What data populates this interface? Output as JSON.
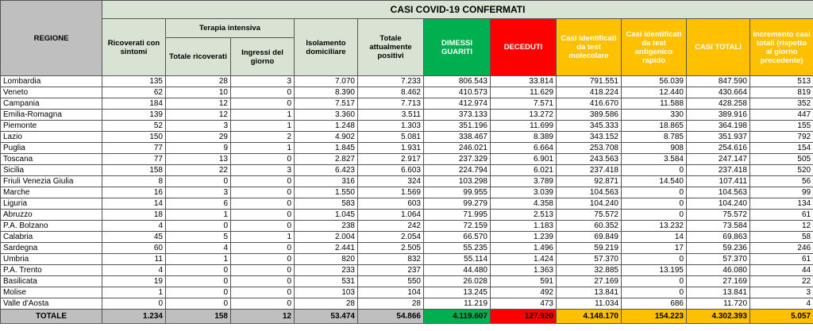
{
  "header": {
    "title": "CASI COVID-19 CONFERMATI",
    "region": "REGIONE",
    "group": "Terapia intensiva",
    "columns": [
      "Ricoverati con sintomi",
      "Totale ricoverati",
      "Ingressi del giorno",
      "Isolamento domiciliare",
      "Totale attualmente positivi",
      "DIMESSI GUARITI",
      "DECEDUTI",
      "Casi identificati da test molecolare",
      "Casi identificati da test antigenico rapido",
      "CASI TOTALI",
      "Incremento casi totali (rispetto al giorno precedente)"
    ]
  },
  "rows": [
    [
      "Lombardia",
      "135",
      "28",
      "3",
      "7.070",
      "7.233",
      "806.543",
      "33.814",
      "791.551",
      "56.039",
      "847.590",
      "513"
    ],
    [
      "Veneto",
      "62",
      "10",
      "0",
      "8.390",
      "8.462",
      "410.573",
      "11.629",
      "418.224",
      "12.440",
      "430.664",
      "819"
    ],
    [
      "Campania",
      "184",
      "12",
      "0",
      "7.517",
      "7.713",
      "412.974",
      "7.571",
      "416.670",
      "11.588",
      "428.258",
      "352"
    ],
    [
      "Emilia-Romagna",
      "139",
      "12",
      "1",
      "3.360",
      "3.511",
      "373.133",
      "13.272",
      "389.586",
      "330",
      "389.916",
      "447"
    ],
    [
      "Piemonte",
      "52",
      "3",
      "1",
      "1.248",
      "1.303",
      "351.196",
      "11.699",
      "345.333",
      "18.865",
      "364.198",
      "155"
    ],
    [
      "Lazio",
      "150",
      "29",
      "2",
      "4.902",
      "5.081",
      "338.467",
      "8.389",
      "343.152",
      "8.785",
      "351.937",
      "792"
    ],
    [
      "Puglia",
      "77",
      "9",
      "1",
      "1.845",
      "1.931",
      "246.021",
      "6.664",
      "253.708",
      "908",
      "254.616",
      "154"
    ],
    [
      "Toscana",
      "77",
      "13",
      "0",
      "2.827",
      "2.917",
      "237.329",
      "6.901",
      "243.563",
      "3.584",
      "247.147",
      "505"
    ],
    [
      "Sicilia",
      "158",
      "22",
      "3",
      "6.423",
      "6.603",
      "224.794",
      "6.021",
      "237.418",
      "0",
      "237.418",
      "520"
    ],
    [
      "Friuli Venezia Giulia",
      "8",
      "0",
      "0",
      "316",
      "324",
      "103.298",
      "3.789",
      "92.871",
      "14.540",
      "107.411",
      "56"
    ],
    [
      "Marche",
      "16",
      "3",
      "0",
      "1.550",
      "1.569",
      "99.955",
      "3.039",
      "104.563",
      "0",
      "104.563",
      "99"
    ],
    [
      "Liguria",
      "14",
      "6",
      "0",
      "583",
      "603",
      "99.279",
      "4.358",
      "104.240",
      "0",
      "104.240",
      "134"
    ],
    [
      "Abruzzo",
      "18",
      "1",
      "0",
      "1.045",
      "1.064",
      "71.995",
      "2.513",
      "75.572",
      "0",
      "75.572",
      "61"
    ],
    [
      "P.A. Bolzano",
      "4",
      "0",
      "0",
      "238",
      "242",
      "72.159",
      "1.183",
      "60.352",
      "13.232",
      "73.584",
      "12"
    ],
    [
      "Calabria",
      "45",
      "5",
      "1",
      "2.004",
      "2.054",
      "66.570",
      "1.239",
      "69.849",
      "14",
      "69.863",
      "58"
    ],
    [
      "Sardegna",
      "60",
      "4",
      "0",
      "2.441",
      "2.505",
      "55.235",
      "1.496",
      "59.219",
      "17",
      "59.236",
      "246"
    ],
    [
      "Umbria",
      "11",
      "1",
      "0",
      "820",
      "832",
      "55.114",
      "1.424",
      "57.370",
      "0",
      "57.370",
      "61"
    ],
    [
      "P.A. Trento",
      "4",
      "0",
      "0",
      "233",
      "237",
      "44.480",
      "1.363",
      "32.885",
      "13.195",
      "46.080",
      "44"
    ],
    [
      "Basilicata",
      "19",
      "0",
      "0",
      "531",
      "550",
      "26.028",
      "591",
      "27.169",
      "0",
      "27.169",
      "22"
    ],
    [
      "Molise",
      "1",
      "0",
      "0",
      "103",
      "104",
      "13.245",
      "492",
      "13.841",
      "0",
      "13.841",
      "3"
    ],
    [
      "Valle d'Aosta",
      "0",
      "0",
      "0",
      "28",
      "28",
      "11.219",
      "473",
      "11.034",
      "686",
      "11.720",
      "4"
    ]
  ],
  "total": [
    "TOTALE",
    "1.234",
    "158",
    "12",
    "53.474",
    "54.866",
    "4.119.607",
    "127.920",
    "4.148.170",
    "154.223",
    "4.302.393",
    "5.057"
  ]
}
